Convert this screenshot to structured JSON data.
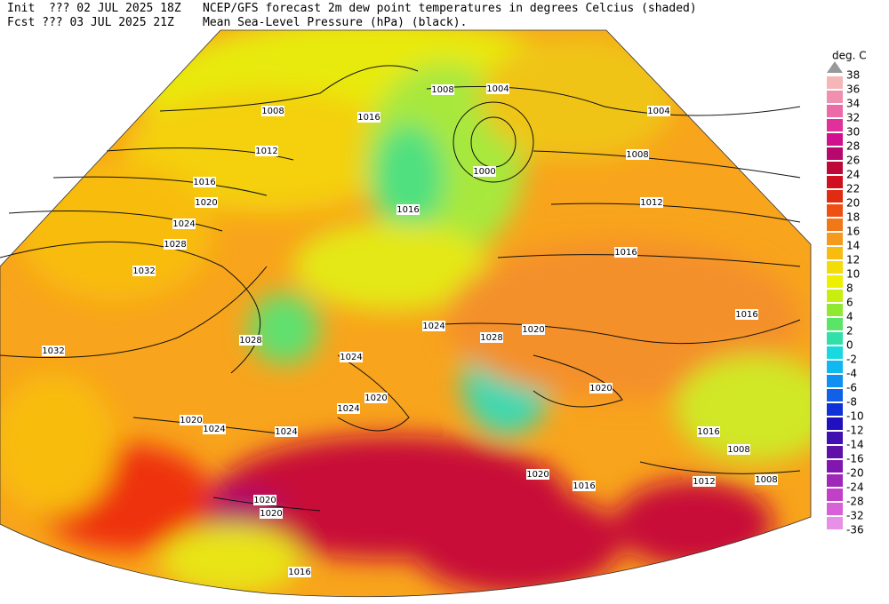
{
  "header": {
    "init": "Init  ??? 02 JUL 2025 18Z",
    "fcst": "Fcst ??? 03 JUL 2025 21Z",
    "title": "NCEP/GFS forecast 2m dew point temperatures in degrees Celcius (shaded)",
    "subtitle": "Mean Sea-Level Pressure (hPa) (black)."
  },
  "colorbar": {
    "title": "deg. C",
    "levels": [
      38,
      36,
      34,
      32,
      30,
      28,
      26,
      24,
      22,
      20,
      18,
      16,
      14,
      12,
      10,
      8,
      6,
      4,
      2,
      0,
      -2,
      -4,
      -6,
      -8,
      -10,
      -12,
      -14,
      -16,
      -20,
      -24,
      -28,
      -32,
      -36
    ],
    "colors": [
      "#f4b6b6",
      "#f08fb0",
      "#ec6aa8",
      "#e0309c",
      "#d0108c",
      "#b8086e",
      "#c00838",
      "#d01020",
      "#e02c10",
      "#ee5014",
      "#f07818",
      "#f49a1c",
      "#f8bc10",
      "#f4dc08",
      "#eef000",
      "#c8ee10",
      "#90e830",
      "#5ae468",
      "#30e0a8",
      "#18d8e0",
      "#10b8f0",
      "#1090f0",
      "#1060e8",
      "#1030d8",
      "#2010c0",
      "#4010b0",
      "#6010a8",
      "#8018b0",
      "#a028b8",
      "#c040c8",
      "#d860d8",
      "#e890e8"
    ]
  },
  "map": {
    "isobar_labels": [
      "1008",
      "1016",
      "1012",
      "1016",
      "1020",
      "1024",
      "1028",
      "1032",
      "1032",
      "1028",
      "1024",
      "1020",
      "1028",
      "1024",
      "1020",
      "1024",
      "1020",
      "1024",
      "1024",
      "1020",
      "1020",
      "1016",
      "1004",
      "1008",
      "1004",
      "1008",
      "1012",
      "1016",
      "1016",
      "1020",
      "1016",
      "1008",
      "1008",
      "1012",
      "1020",
      "1016",
      "1000",
      "1016"
    ]
  }
}
